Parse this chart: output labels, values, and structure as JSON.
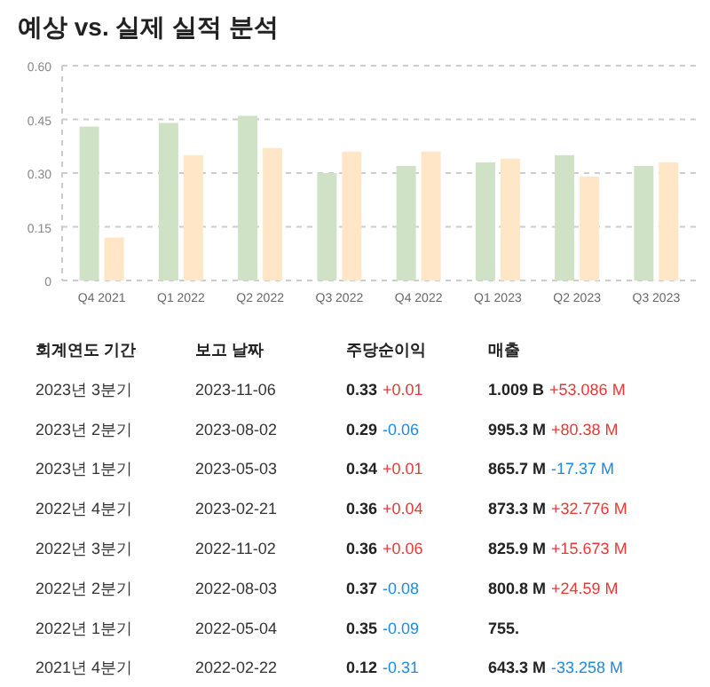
{
  "chart_data": {
    "type": "bar",
    "title": "예상 vs. 실제 실적 분석",
    "categories": [
      "Q4 2021",
      "Q1 2022",
      "Q2 2022",
      "Q3 2022",
      "Q4 2022",
      "Q1 2023",
      "Q2 2023",
      "Q3 2023"
    ],
    "series": [
      {
        "color": "#cfe2c6",
        "values": [
          0.43,
          0.44,
          0.46,
          0.3,
          0.32,
          0.33,
          0.35,
          0.32
        ]
      },
      {
        "color": "#ffe6c7",
        "values": [
          0.12,
          0.35,
          0.37,
          0.36,
          0.36,
          0.34,
          0.29,
          0.33
        ]
      }
    ],
    "ylim": [
      0,
      0.6
    ],
    "yticks": [
      0,
      0.15,
      {
        "value": 0.3,
        "label": "0.30"
      },
      0.45,
      {
        "value": 0.6,
        "label": "0.60"
      }
    ],
    "grid": "y",
    "annotations": [
      "회계연도 기간\t보고 날짜\t주당순이익\t매출",
      "2023년 3분기\t2023-11-06\t0.33\t+0.01\t1.009 B\t+53.086 M",
      "2023년 2분기\t2023-08-02\t0.29\t-0.06\t995.3 M\t+80.38 M",
      "2023년 1분기\t2023-05-03\t0.34\t+0.01\t865.7 M\t-17.37 M",
      "2022년 4분기\t2023-02-21\t0.36\t+0.04\t873.3 M\t+32.776 M",
      "2022년 3분기\t2022-11-02\t0.36\t+0.06\t825.9 M\t+15.673 M",
      "2022년 2분기\t2022-08-03\t0.37\t-0.08\t800.8 M\t+24.59 M",
      "2022년 1분기\t2022-05-04\t0.35\t-0.09\t755.",
      "2021년 4분기\t2022-02-22\t0.12\t-0.31\t643.3 M\t-33.258 M"
    ]
  }
}
